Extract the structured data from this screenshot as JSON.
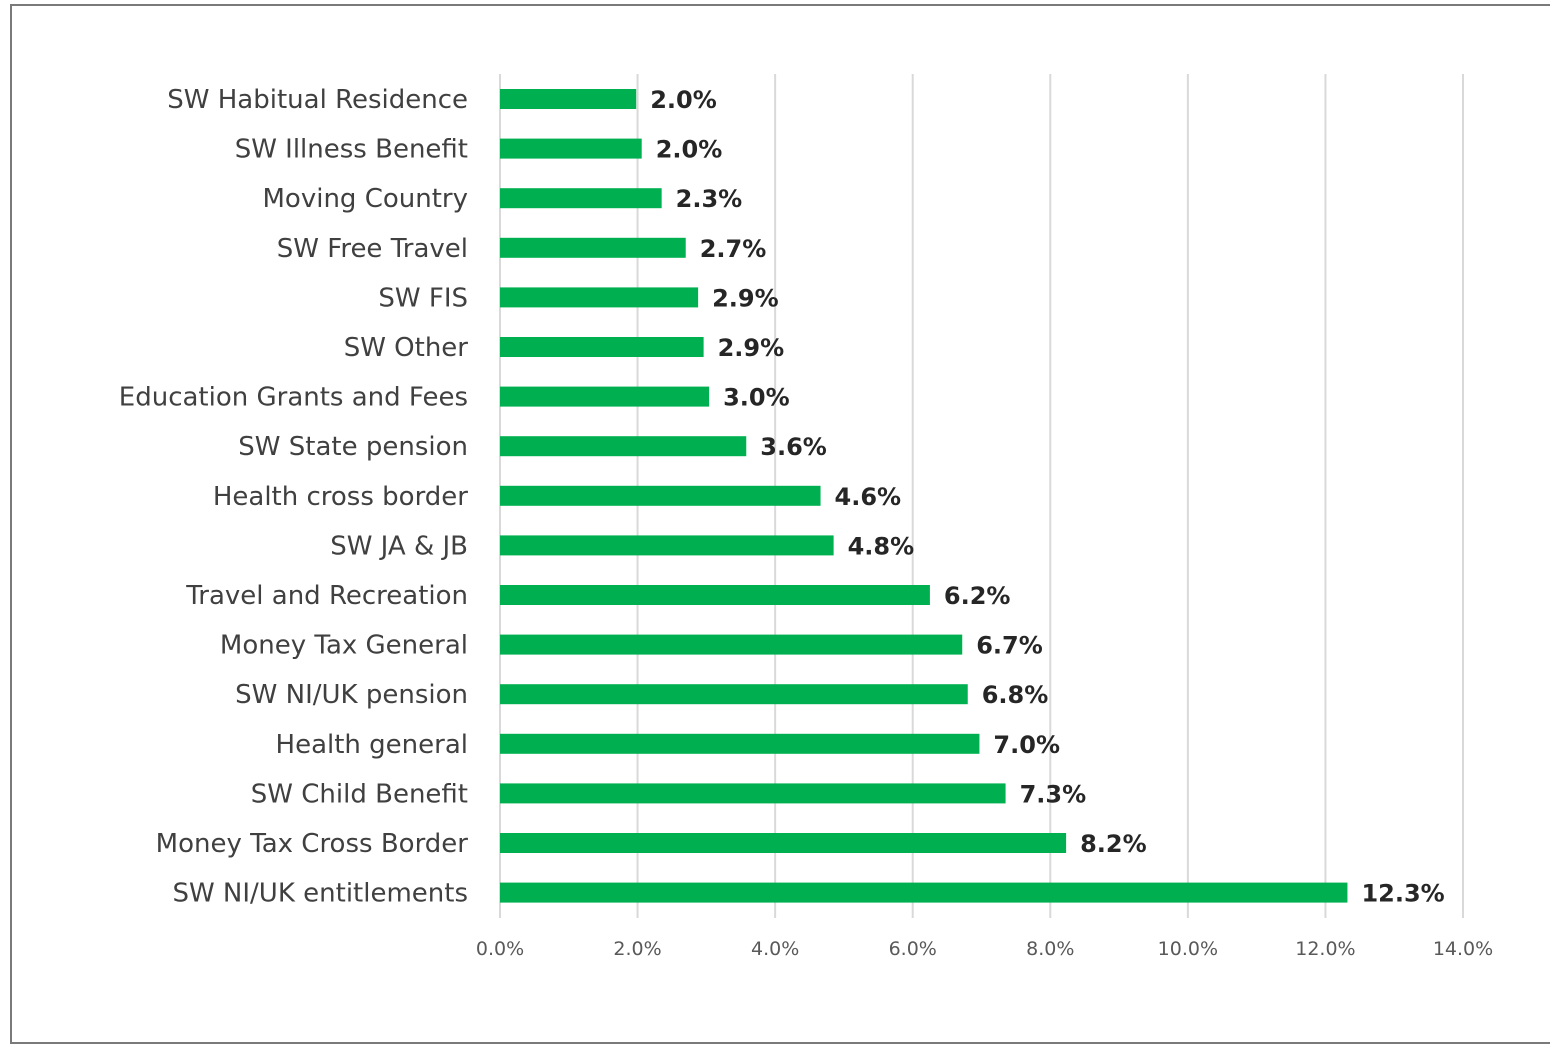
{
  "chart_data": {
    "type": "bar",
    "orientation": "horizontal",
    "categories": [
      "SW Habitual Residence",
      "SW Illness Benefit",
      "Moving Country",
      "SW Free Travel",
      "SW FIS",
      "SW Other",
      "Education Grants and Fees",
      "SW State pension",
      "Health cross border",
      "SW JA & JB",
      "Travel and Recreation",
      "Money Tax General",
      "SW NI/UK pension",
      "Health general",
      "SW Child Benefit",
      "Money Tax Cross Border",
      "SW NI/UK entitlements"
    ],
    "values": [
      2.0,
      2.0,
      2.3,
      2.7,
      2.9,
      2.9,
      3.0,
      3.6,
      4.6,
      4.8,
      6.2,
      6.7,
      6.8,
      7.0,
      7.3,
      8.2,
      12.3
    ],
    "value_labels": [
      "2.0%",
      "2.0%",
      "2.3%",
      "2.7%",
      "2.9%",
      "2.9%",
      "3.0%",
      "3.6%",
      "4.6%",
      "4.8%",
      "6.2%",
      "6.7%",
      "6.8%",
      "7.0%",
      "7.3%",
      "8.2%",
      "12.3%"
    ],
    "bar_lengths": [
      1.98,
      2.06,
      2.35,
      2.7,
      2.88,
      2.96,
      3.04,
      3.58,
      4.66,
      4.85,
      6.25,
      6.72,
      6.8,
      6.97,
      7.35,
      8.23,
      12.32
    ],
    "xlim": [
      0,
      14
    ],
    "xticks": [
      0,
      2,
      4,
      6,
      8,
      10,
      12,
      14
    ],
    "xtick_labels": [
      "0.0%",
      "2.0%",
      "4.0%",
      "6.0%",
      "8.0%",
      "10.0%",
      "12.0%",
      "14.0%"
    ],
    "grid": "vertical",
    "legend": "none",
    "bar_color": "#00b050"
  }
}
